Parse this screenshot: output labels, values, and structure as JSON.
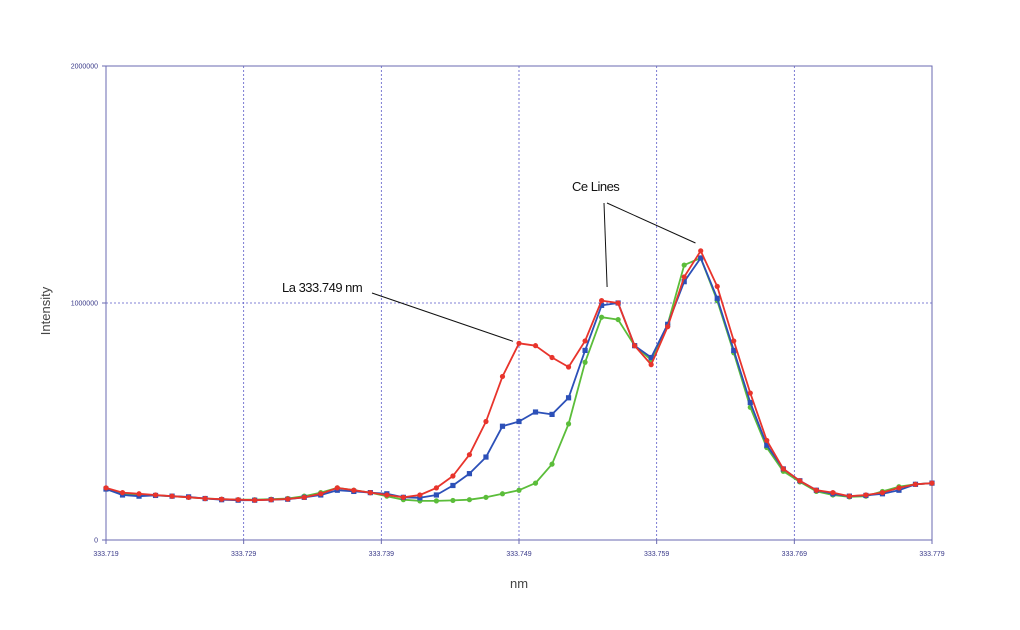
{
  "chart_data": {
    "type": "line",
    "xlabel": "nm",
    "ylabel": "Intensity",
    "xlim": [
      333.719,
      333.779
    ],
    "ylim": [
      0,
      2000000
    ],
    "x_ticks": [
      "333.719",
      "333.729",
      "333.739",
      "333.749",
      "333.759",
      "333.769",
      "333.779"
    ],
    "y_ticks": [
      "0",
      "1000000",
      "2000000"
    ],
    "grid": true,
    "annotations": [
      {
        "text": "La 333.749 nm",
        "points_to_x": 333.749,
        "points_to_y": 830000
      },
      {
        "text": "Ce Lines",
        "points_to_x": [
          333.7554,
          333.7624
        ],
        "points_to_y": [
          1070000,
          1250000
        ]
      }
    ],
    "series": [
      {
        "color": "#e8342c",
        "marker": "circle",
        "points": [
          [
            333.719,
            220000
          ],
          [
            333.7202,
            200000
          ],
          [
            333.7214,
            195000
          ],
          [
            333.7226,
            190000
          ],
          [
            333.7238,
            185000
          ],
          [
            333.725,
            180000
          ],
          [
            333.7262,
            175000
          ],
          [
            333.7274,
            172000
          ],
          [
            333.7286,
            170000
          ],
          [
            333.7298,
            168000
          ],
          [
            333.731,
            170000
          ],
          [
            333.7322,
            173000
          ],
          [
            333.7334,
            180000
          ],
          [
            333.7346,
            195000
          ],
          [
            333.7358,
            220000
          ],
          [
            333.737,
            210000
          ],
          [
            333.7382,
            200000
          ],
          [
            333.7394,
            190000
          ],
          [
            333.7406,
            180000
          ],
          [
            333.7418,
            190000
          ],
          [
            333.743,
            220000
          ],
          [
            333.7442,
            270000
          ],
          [
            333.7454,
            360000
          ],
          [
            333.7466,
            500000
          ],
          [
            333.7478,
            690000
          ],
          [
            333.749,
            830000
          ],
          [
            333.7502,
            820000
          ],
          [
            333.7514,
            770000
          ],
          [
            333.7526,
            730000
          ],
          [
            333.7538,
            840000
          ],
          [
            333.755,
            1010000
          ],
          [
            333.7562,
            1000000
          ],
          [
            333.7574,
            820000
          ],
          [
            333.7586,
            740000
          ],
          [
            333.7598,
            900000
          ],
          [
            333.761,
            1110000
          ],
          [
            333.7622,
            1220000
          ],
          [
            333.7634,
            1070000
          ],
          [
            333.7646,
            840000
          ],
          [
            333.7658,
            620000
          ],
          [
            333.767,
            420000
          ],
          [
            333.7682,
            300000
          ],
          [
            333.7694,
            250000
          ],
          [
            333.7706,
            210000
          ],
          [
            333.7718,
            200000
          ],
          [
            333.773,
            185000
          ],
          [
            333.7742,
            190000
          ],
          [
            333.7754,
            200000
          ],
          [
            333.7766,
            220000
          ],
          [
            333.7778,
            235000
          ],
          [
            333.779,
            240000
          ]
        ]
      },
      {
        "color": "#2c50b8",
        "marker": "square",
        "points": [
          [
            333.719,
            215000
          ],
          [
            333.7202,
            190000
          ],
          [
            333.7214,
            185000
          ],
          [
            333.7226,
            188000
          ],
          [
            333.7238,
            185000
          ],
          [
            333.725,
            182000
          ],
          [
            333.7262,
            175000
          ],
          [
            333.7274,
            170000
          ],
          [
            333.7286,
            168000
          ],
          [
            333.7298,
            168000
          ],
          [
            333.731,
            170000
          ],
          [
            333.7322,
            172000
          ],
          [
            333.7334,
            180000
          ],
          [
            333.7346,
            190000
          ],
          [
            333.7358,
            210000
          ],
          [
            333.737,
            205000
          ],
          [
            333.7382,
            200000
          ],
          [
            333.7394,
            195000
          ],
          [
            333.7406,
            180000
          ],
          [
            333.7418,
            178000
          ],
          [
            333.743,
            190000
          ],
          [
            333.7442,
            230000
          ],
          [
            333.7454,
            280000
          ],
          [
            333.7466,
            350000
          ],
          [
            333.7478,
            480000
          ],
          [
            333.749,
            500000
          ],
          [
            333.7502,
            540000
          ],
          [
            333.7514,
            530000
          ],
          [
            333.7526,
            600000
          ],
          [
            333.7538,
            800000
          ],
          [
            333.755,
            990000
          ],
          [
            333.7562,
            1000000
          ],
          [
            333.7574,
            820000
          ],
          [
            333.7586,
            770000
          ],
          [
            333.7598,
            910000
          ],
          [
            333.761,
            1090000
          ],
          [
            333.7622,
            1190000
          ],
          [
            333.7634,
            1020000
          ],
          [
            333.7646,
            800000
          ],
          [
            333.7658,
            580000
          ],
          [
            333.767,
            400000
          ],
          [
            333.7682,
            300000
          ],
          [
            333.7694,
            250000
          ],
          [
            333.7706,
            210000
          ],
          [
            333.7718,
            195000
          ],
          [
            333.773,
            185000
          ],
          [
            333.7742,
            188000
          ],
          [
            333.7754,
            195000
          ],
          [
            333.7766,
            210000
          ],
          [
            333.7778,
            235000
          ],
          [
            333.779,
            240000
          ]
        ]
      },
      {
        "color": "#5bbd3a",
        "marker": "circle",
        "points": [
          [
            333.719,
            215000
          ],
          [
            333.7202,
            195000
          ],
          [
            333.7214,
            190000
          ],
          [
            333.7226,
            188000
          ],
          [
            333.7238,
            185000
          ],
          [
            333.725,
            180000
          ],
          [
            333.7262,
            175000
          ],
          [
            333.7274,
            172000
          ],
          [
            333.7286,
            170000
          ],
          [
            333.7298,
            170000
          ],
          [
            333.731,
            172000
          ],
          [
            333.7322,
            175000
          ],
          [
            333.7334,
            185000
          ],
          [
            333.7346,
            200000
          ],
          [
            333.7358,
            220000
          ],
          [
            333.737,
            210000
          ],
          [
            333.7382,
            200000
          ],
          [
            333.7394,
            185000
          ],
          [
            333.7406,
            170000
          ],
          [
            333.7418,
            165000
          ],
          [
            333.743,
            165000
          ],
          [
            333.7442,
            167000
          ],
          [
            333.7454,
            170000
          ],
          [
            333.7466,
            180000
          ],
          [
            333.7478,
            195000
          ],
          [
            333.749,
            210000
          ],
          [
            333.7502,
            240000
          ],
          [
            333.7514,
            320000
          ],
          [
            333.7526,
            490000
          ],
          [
            333.7538,
            750000
          ],
          [
            333.755,
            940000
          ],
          [
            333.7562,
            930000
          ],
          [
            333.7574,
            820000
          ],
          [
            333.7586,
            760000
          ],
          [
            333.7598,
            910000
          ],
          [
            333.761,
            1160000
          ],
          [
            333.7622,
            1190000
          ],
          [
            333.7634,
            1010000
          ],
          [
            333.7646,
            790000
          ],
          [
            333.7658,
            560000
          ],
          [
            333.767,
            390000
          ],
          [
            333.7682,
            290000
          ],
          [
            333.7694,
            245000
          ],
          [
            333.7706,
            205000
          ],
          [
            333.7718,
            190000
          ],
          [
            333.773,
            182000
          ],
          [
            333.7742,
            185000
          ],
          [
            333.7754,
            205000
          ],
          [
            333.7766,
            225000
          ],
          [
            333.7778,
            235000
          ],
          [
            333.779,
            240000
          ]
        ]
      }
    ]
  }
}
